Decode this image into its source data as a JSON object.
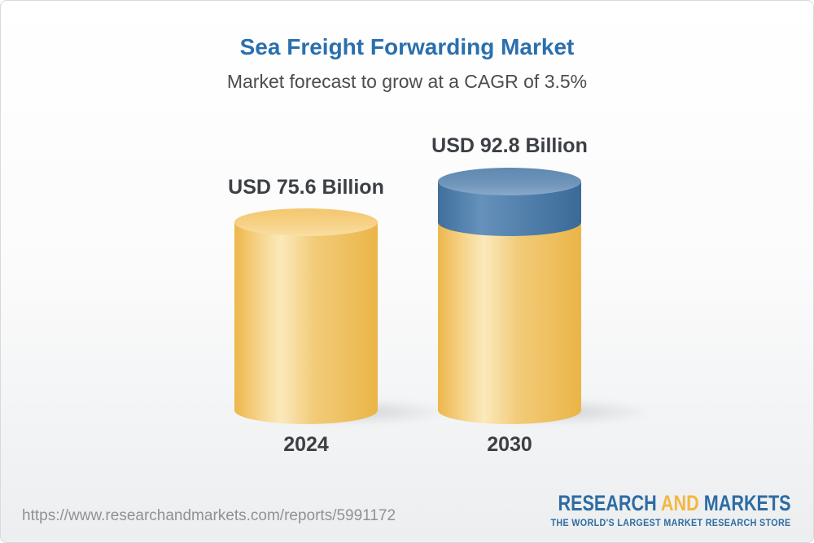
{
  "chart_data": {
    "type": "bar",
    "variant": "3d-cylinder-columns",
    "title": "Sea Freight Forwarding Market",
    "subtitle": "Market forecast to grow at a CAGR of 3.5%",
    "categories": [
      "2024",
      "2030"
    ],
    "values": [
      75.6,
      92.8
    ],
    "unit": "USD Billion",
    "value_labels": [
      "USD 75.6 Billion",
      "USD 92.8 Billion"
    ],
    "cagr_percent": 3.5,
    "legend": "none",
    "grid": false,
    "axes": "none",
    "colors": {
      "title_text": "#2b6fad",
      "subtitle_text": "#4a4d50",
      "label_text": "#3c4045",
      "base_cylinder": "#f0bf5c",
      "growth_cylinder": "#4e7ba8"
    }
  },
  "footer": {
    "url": "https://www.researchandmarkets.com/reports/5991172",
    "logo": {
      "word1": "RESEARCH",
      "word2": "AND",
      "word3": "MARKETS",
      "tagline": "THE WORLD'S LARGEST MARKET RESEARCH STORE",
      "brand_blue": "#2e6ca3",
      "brand_yellow": "#f3b741"
    }
  }
}
